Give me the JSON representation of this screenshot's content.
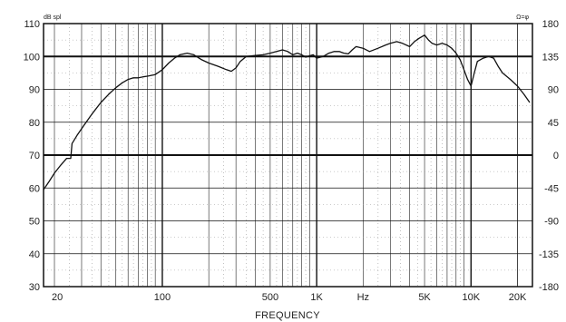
{
  "chart_data": {
    "type": "line",
    "title": "",
    "xlabel": "FREQUENCY",
    "ylabel_left_unit": "dB spl",
    "ylabel_right_unit": "Ω=φ",
    "x_scale": "log",
    "xlim": [
      17,
      25000
    ],
    "ylim_left": [
      30,
      110
    ],
    "ylim_right": [
      -180,
      180
    ],
    "grid": true,
    "x_ticks": [
      {
        "value": 20,
        "label": "20"
      },
      {
        "value": 100,
        "label": "100"
      },
      {
        "value": 500,
        "label": "500"
      },
      {
        "value": 1000,
        "label": "1K"
      },
      {
        "value": 2000,
        "label": "Hz"
      },
      {
        "value": 5000,
        "label": "5K"
      },
      {
        "value": 10000,
        "label": "10K"
      },
      {
        "value": 20000,
        "label": "20K"
      }
    ],
    "y_left_ticks": [
      "30",
      "40",
      "50",
      "60",
      "70",
      "80",
      "90",
      "100",
      "110"
    ],
    "y_right_ticks": [
      "-180",
      "-135",
      "-90",
      "-45",
      "0",
      "45",
      "90",
      "135",
      "180"
    ],
    "series": [
      {
        "points": [
          [
            17,
            59.5
          ],
          [
            18.5,
            62
          ],
          [
            20,
            64.5
          ],
          [
            22,
            67
          ],
          [
            24,
            69
          ],
          [
            25.5,
            69
          ],
          [
            26,
            73.5
          ],
          [
            28,
            76
          ],
          [
            31,
            79
          ],
          [
            35,
            82.5
          ],
          [
            40,
            86
          ],
          [
            45,
            88.5
          ],
          [
            50,
            90.5
          ],
          [
            55,
            92
          ],
          [
            60,
            93
          ],
          [
            65,
            93.5
          ],
          [
            70,
            93.5
          ],
          [
            75,
            93.8
          ],
          [
            80,
            94
          ],
          [
            90,
            94.5
          ],
          [
            100,
            96
          ],
          [
            110,
            98
          ],
          [
            120,
            99.5
          ],
          [
            130,
            100.5
          ],
          [
            145,
            101
          ],
          [
            160,
            100.5
          ],
          [
            180,
            99
          ],
          [
            200,
            98
          ],
          [
            230,
            97
          ],
          [
            260,
            96
          ],
          [
            280,
            95.5
          ],
          [
            300,
            96.5
          ],
          [
            320,
            98.5
          ],
          [
            350,
            100
          ],
          [
            400,
            100.3
          ],
          [
            450,
            100.5
          ],
          [
            500,
            101
          ],
          [
            550,
            101.5
          ],
          [
            600,
            102
          ],
          [
            650,
            101.5
          ],
          [
            700,
            100.5
          ],
          [
            750,
            101
          ],
          [
            800,
            100.5
          ],
          [
            850,
            99.8
          ],
          [
            900,
            100.2
          ],
          [
            950,
            100.5
          ],
          [
            1000,
            99.5
          ],
          [
            1100,
            100
          ],
          [
            1200,
            101
          ],
          [
            1300,
            101.5
          ],
          [
            1400,
            101.5
          ],
          [
            1500,
            101
          ],
          [
            1600,
            100.8
          ],
          [
            1700,
            102
          ],
          [
            1800,
            103
          ],
          [
            2000,
            102.5
          ],
          [
            2200,
            101.5
          ],
          [
            2500,
            102.5
          ],
          [
            2800,
            103.5
          ],
          [
            3000,
            104
          ],
          [
            3300,
            104.5
          ],
          [
            3600,
            104
          ],
          [
            4000,
            103
          ],
          [
            4300,
            104.5
          ],
          [
            4600,
            105.5
          ],
          [
            5000,
            106.5
          ],
          [
            5300,
            105
          ],
          [
            5600,
            104
          ],
          [
            6000,
            103.5
          ],
          [
            6500,
            104
          ],
          [
            7000,
            103.5
          ],
          [
            7500,
            102.5
          ],
          [
            8000,
            101
          ],
          [
            8500,
            99
          ],
          [
            9000,
            96
          ],
          [
            9500,
            93
          ],
          [
            10000,
            91
          ],
          [
            10500,
            95
          ],
          [
            11000,
            98.5
          ],
          [
            12000,
            99.5
          ],
          [
            13000,
            100
          ],
          [
            14000,
            99.5
          ],
          [
            15000,
            97
          ],
          [
            16000,
            95
          ],
          [
            18000,
            93
          ],
          [
            20000,
            91
          ],
          [
            22000,
            88.5
          ],
          [
            24000,
            86
          ]
        ]
      }
    ]
  }
}
